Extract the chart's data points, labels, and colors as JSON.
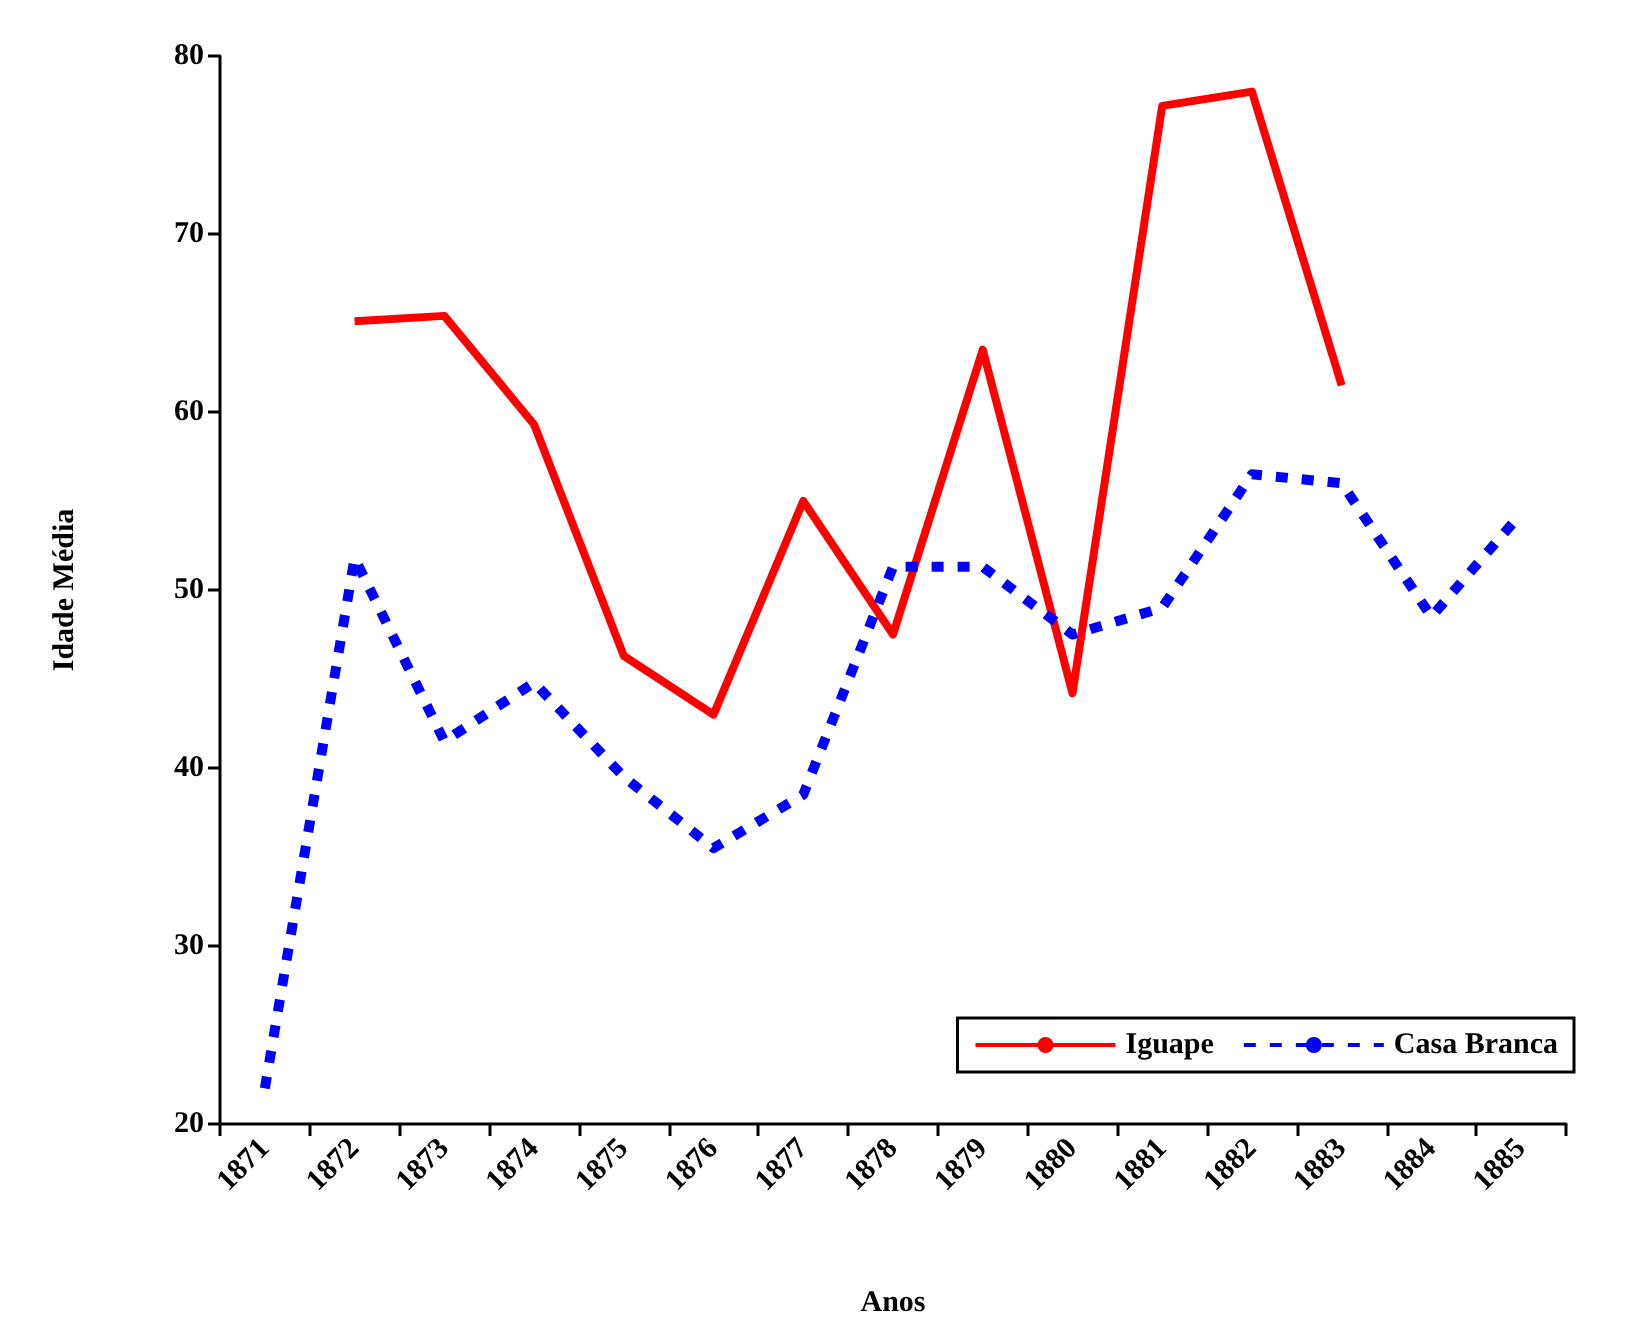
{
  "chart_data": {
    "type": "line",
    "xlabel": "Anos",
    "ylabel": "Idade Média",
    "categories": [
      "1871",
      "1872",
      "1873",
      "1874",
      "1875",
      "1876",
      "1877",
      "1878",
      "1879",
      "1880",
      "1881",
      "1882",
      "1883",
      "1884",
      "1885"
    ],
    "series": [
      {
        "name": "Iguape",
        "color": "#ff0000",
        "line_style": "solid",
        "values": [
          null,
          65.1,
          65.4,
          59.3,
          46.3,
          43,
          55,
          47.5,
          63.5,
          44.2,
          77.2,
          78,
          61.5,
          null,
          null
        ]
      },
      {
        "name": "Casa Branca",
        "color": "#0000ff",
        "line_style": "dashed",
        "values": [
          22,
          51.8,
          41.5,
          44.8,
          39.5,
          35.5,
          38.5,
          51.3,
          51.3,
          47.5,
          49,
          56.5,
          56,
          48.5,
          54.3
        ]
      }
    ],
    "ylim": [
      20,
      80
    ],
    "yticks": [
      20,
      30,
      40,
      50,
      60,
      70,
      80
    ],
    "grid": false,
    "legend": "bottom right",
    "marker": "none"
  }
}
